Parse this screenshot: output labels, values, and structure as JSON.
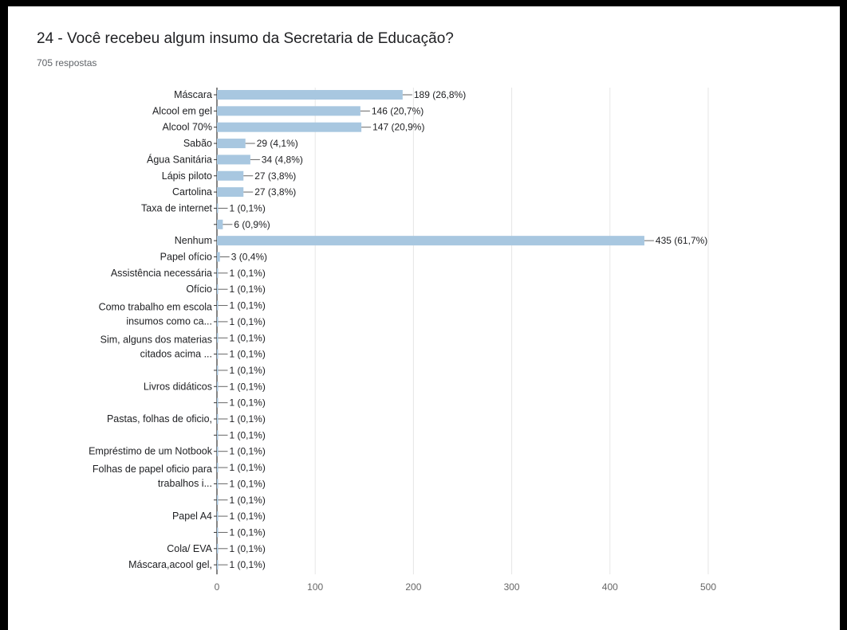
{
  "question": {
    "title": "24 - Você recebeu algum insumo da Secretaria de Educação?",
    "responses": "705 respostas"
  },
  "colors": {
    "bar": "#a8c7e0",
    "grid": "#e6e6e6",
    "axis": "#333333",
    "label_text": "#202124",
    "tick_text": "#666666"
  },
  "chart_data": {
    "type": "bar",
    "orientation": "horizontal",
    "title": "24 - Você recebeu algum insumo da Secretaria de Educação?",
    "subtitle": "705 respostas",
    "xlim": [
      0,
      500
    ],
    "xticks": [
      0,
      100,
      200,
      300,
      400,
      500
    ],
    "grid": true,
    "legend": "none",
    "rows": [
      {
        "label": "Máscara",
        "value": 189,
        "text": "189 (26,8%)"
      },
      {
        "label": "Alcool em gel",
        "value": 146,
        "text": "146 (20,7%)"
      },
      {
        "label": "Alcool 70%",
        "value": 147,
        "text": "147 (20,9%)"
      },
      {
        "label": "Sabão",
        "value": 29,
        "text": "29 (4,1%)"
      },
      {
        "label": "Água Sanitária",
        "value": 34,
        "text": "34 (4,8%)"
      },
      {
        "label": "Lápis piloto",
        "value": 27,
        "text": "27 (3,8%)"
      },
      {
        "label": "Cartolina",
        "value": 27,
        "text": "27 (3,8%)"
      },
      {
        "label": "Taxa de internet",
        "value": 1,
        "text": "1 (0,1%)"
      },
      {
        "label": "",
        "value": 6,
        "text": "6 (0,9%)"
      },
      {
        "label": "Nenhum",
        "value": 435,
        "text": "435 (61,7%)"
      },
      {
        "label": "Papel ofício",
        "value": 3,
        "text": "3 (0,4%)"
      },
      {
        "label": "Assistência necessária",
        "value": 1,
        "text": "1 (0,1%)"
      },
      {
        "label": "Ofício",
        "value": 1,
        "text": "1 (0,1%)"
      },
      {
        "label": "",
        "value": 1,
        "text": "1 (0,1%)"
      },
      {
        "label": "",
        "value": 1,
        "text": "1 (0,1%)"
      },
      {
        "label": "",
        "value": 1,
        "text": "1 (0,1%)"
      },
      {
        "label": "",
        "value": 1,
        "text": "1 (0,1%)"
      },
      {
        "label": "",
        "value": 1,
        "text": "1 (0,1%)"
      },
      {
        "label": "Livros didáticos",
        "value": 1,
        "text": "1 (0,1%)"
      },
      {
        "label": "",
        "value": 1,
        "text": "1 (0,1%)"
      },
      {
        "label": "Pastas, folhas de oficio,",
        "value": 1,
        "text": "1 (0,1%)"
      },
      {
        "label": "",
        "value": 1,
        "text": "1 (0,1%)"
      },
      {
        "label": "Empréstimo de um Notbook",
        "value": 1,
        "text": "1 (0,1%)"
      },
      {
        "label": "",
        "value": 1,
        "text": "1 (0,1%)"
      },
      {
        "label": "",
        "value": 1,
        "text": "1 (0,1%)"
      },
      {
        "label": "",
        "value": 1,
        "text": "1 (0,1%)"
      },
      {
        "label": "Papel A4",
        "value": 1,
        "text": "1 (0,1%)"
      },
      {
        "label": "",
        "value": 1,
        "text": "1 (0,1%)"
      },
      {
        "label": "Cola/ EVA",
        "value": 1,
        "text": "1 (0,1%)"
      },
      {
        "label": "Máscara,acool gel,",
        "value": 1,
        "text": "1 (0,1%)"
      }
    ],
    "group_labels": [
      {
        "lines": [
          "Como trabalho em escola",
          "insumos como ca..."
        ],
        "rows": [
          13,
          14
        ]
      },
      {
        "lines": [
          "Sim, alguns dos materias",
          "citados acima ..."
        ],
        "rows": [
          15,
          16
        ]
      },
      {
        "lines": [
          "Folhas de papel oficio para",
          "trabalhos i..."
        ],
        "rows": [
          23,
          24
        ]
      }
    ]
  }
}
